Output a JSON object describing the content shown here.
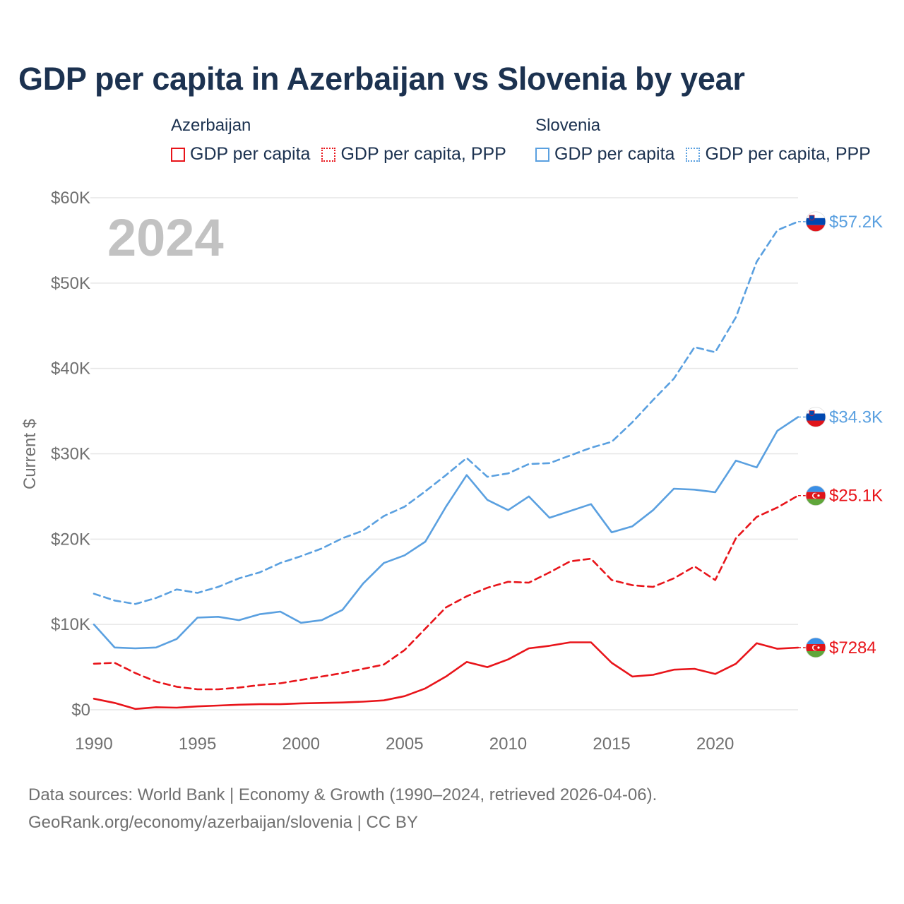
{
  "title": "GDP per capita in Azerbaijan vs Slovenia by year",
  "legend": [
    {
      "country": "Azerbaijan",
      "color": "#e8141a",
      "items": [
        "GDP per capita",
        "GDP per capita, PPP"
      ]
    },
    {
      "country": "Slovenia",
      "color": "#5aa0e0",
      "items": [
        "GDP per capita",
        "GDP per capita, PPP"
      ]
    }
  ],
  "year_watermark": "2024",
  "footer": {
    "line1": "Data sources: World Bank | Economy & Growth (1990–2024, retrieved 2026-04-06).",
    "line2": "GeoRank.org/economy/azerbaijan/slovenia | CC BY"
  },
  "chart_data": {
    "type": "line",
    "title": "GDP per capita in Azerbaijan vs Slovenia by year",
    "xlabel": "",
    "ylabel": "Current $",
    "xlim": [
      1990,
      2024
    ],
    "ylim": [
      0,
      60000
    ],
    "grid": true,
    "x_ticks": [
      1990,
      1995,
      2000,
      2005,
      2010,
      2015,
      2020
    ],
    "x_tick_labels": [
      "1990",
      "1995",
      "2000",
      "2005",
      "2010",
      "2015",
      "2020"
    ],
    "y_ticks": [
      0,
      10000,
      20000,
      30000,
      40000,
      50000,
      60000
    ],
    "y_tick_labels": [
      "$0",
      "$10K",
      "$20K",
      "$30K",
      "$40K",
      "$50K",
      "$60K"
    ],
    "x": [
      1990,
      1991,
      1992,
      1993,
      1994,
      1995,
      1996,
      1997,
      1998,
      1999,
      2000,
      2001,
      2002,
      2003,
      2004,
      2005,
      2006,
      2007,
      2008,
      2009,
      2010,
      2011,
      2012,
      2013,
      2014,
      2015,
      2016,
      2017,
      2018,
      2019,
      2020,
      2021,
      2022,
      2023,
      2024
    ],
    "series": [
      {
        "name": "Slovenia GDP per capita, PPP",
        "country": "Slovenia",
        "style": "dashed",
        "color": "#5aa0e0",
        "end_label": "$57.2K",
        "values": [
          13600,
          12800,
          12400,
          13100,
          14100,
          13700,
          14400,
          15400,
          16100,
          17200,
          18000,
          18900,
          20100,
          21000,
          22700,
          23800,
          25600,
          27500,
          29500,
          27300,
          27700,
          28800,
          28900,
          29800,
          30700,
          31400,
          33700,
          36300,
          38800,
          42500,
          41900,
          46000,
          52500,
          56200,
          57200
        ]
      },
      {
        "name": "Slovenia GDP per capita",
        "country": "Slovenia",
        "style": "solid",
        "color": "#5aa0e0",
        "end_label": "$34.3K",
        "values": [
          10000,
          7300,
          7200,
          7300,
          8300,
          10800,
          10900,
          10500,
          11200,
          11500,
          10200,
          10500,
          11700,
          14800,
          17200,
          18100,
          19700,
          23800,
          27500,
          24600,
          23400,
          25000,
          22500,
          23300,
          24100,
          20800,
          21500,
          23400,
          25900,
          25800,
          25500,
          29200,
          28400,
          32700,
          34300
        ]
      },
      {
        "name": "Azerbaijan GDP per capita, PPP",
        "country": "Azerbaijan",
        "style": "dashed",
        "color": "#e8141a",
        "end_label": "$25.1K",
        "values": [
          5400,
          5500,
          4300,
          3300,
          2700,
          2400,
          2400,
          2600,
          2900,
          3100,
          3500,
          3900,
          4300,
          4800,
          5300,
          7000,
          9500,
          12000,
          13300,
          14300,
          15000,
          14900,
          16100,
          17400,
          17700,
          15200,
          14600,
          14400,
          15400,
          16800,
          15200,
          20100,
          22600,
          23700,
          25100
        ]
      },
      {
        "name": "Azerbaijan GDP per capita",
        "country": "Azerbaijan",
        "style": "solid",
        "color": "#e8141a",
        "end_label": "$7284",
        "values": [
          1300,
          800,
          100,
          300,
          250,
          400,
          500,
          600,
          650,
          650,
          750,
          800,
          850,
          950,
          1100,
          1600,
          2500,
          3900,
          5600,
          5000,
          5900,
          7200,
          7500,
          7900,
          7900,
          5500,
          3900,
          4100,
          4700,
          4800,
          4200,
          5400,
          7800,
          7150,
          7284
        ]
      }
    ]
  }
}
